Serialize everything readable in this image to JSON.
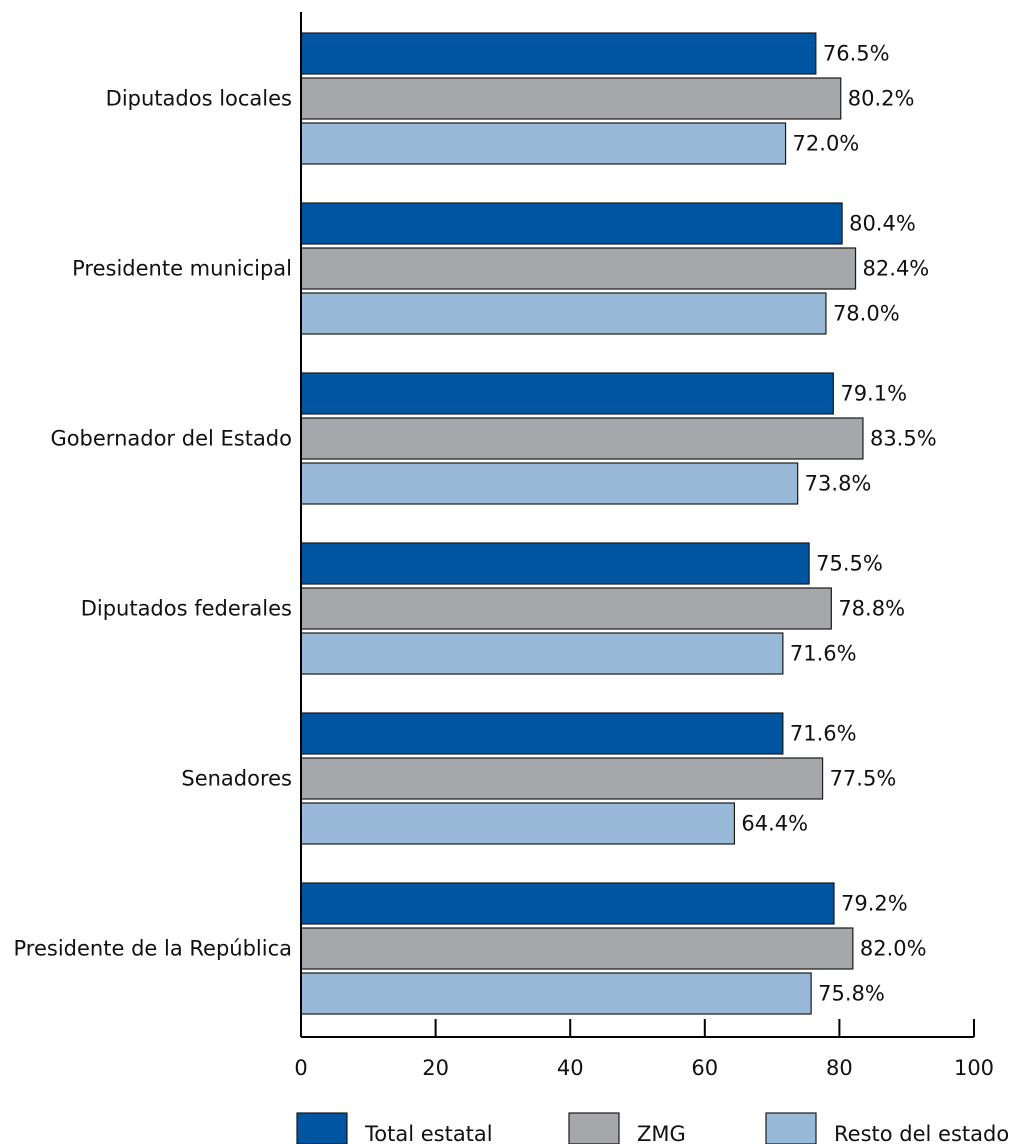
{
  "chart_data": {
    "type": "bar",
    "orientation": "horizontal",
    "categories": [
      "Diputados locales",
      "Presidente municipal",
      "Gobernador del Estado",
      "Diputados federales",
      "Senadores",
      "Presidente de la República"
    ],
    "series": [
      {
        "name": "Total estatal",
        "color": "#0055a0",
        "values": [
          76.5,
          80.4,
          79.1,
          75.5,
          71.6,
          79.2
        ],
        "labels": [
          "76.5%",
          "80.4%",
          "79.1%",
          "75.5%",
          "71.6%",
          "79.2%"
        ]
      },
      {
        "name": "ZMG",
        "color": "#a6a7aa",
        "values": [
          80.2,
          82.4,
          83.5,
          78.8,
          77.5,
          82.0
        ],
        "labels": [
          "80.2%",
          "82.4%",
          "83.5%",
          "78.8%",
          "77.5%",
          "82.0%"
        ]
      },
      {
        "name": "Resto del estado",
        "color": "#98bad8",
        "values": [
          72.0,
          78.0,
          73.8,
          71.6,
          64.4,
          75.8
        ],
        "labels": [
          "72.0%",
          "78.0%",
          "73.8%",
          "71.6%",
          "64.4%",
          "75.8%"
        ]
      }
    ],
    "xlim": [
      0,
      100
    ],
    "xticks": [
      0,
      20,
      40,
      60,
      80,
      100
    ],
    "xtick_labels": [
      "0",
      "20",
      "40",
      "60",
      "80",
      "100"
    ],
    "title": "",
    "xlabel": "",
    "ylabel": "",
    "grid": false,
    "legend_position": "bottom"
  }
}
